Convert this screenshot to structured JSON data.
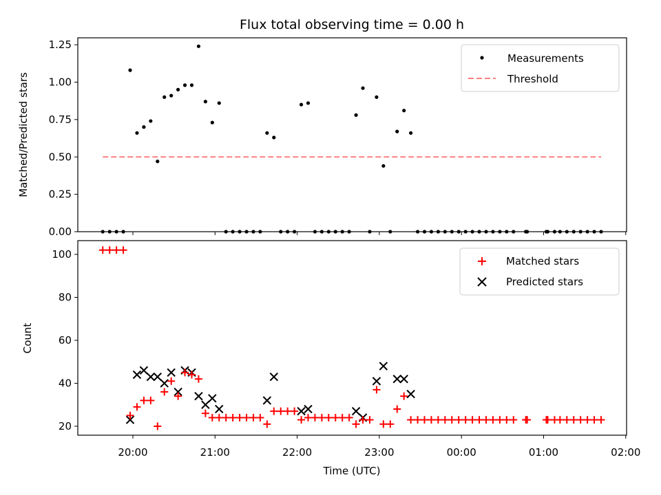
{
  "chart_data": [
    {
      "type": "scatter",
      "title": "Flux total observing time = 0.00 h",
      "xlabel": "",
      "ylabel": "Matched/Predicted stars",
      "ylim": [
        0,
        1.3
      ],
      "y_ticks": [
        "0.00",
        "0.25",
        "0.50",
        "0.75",
        "1.00",
        "1.25"
      ],
      "legend": {
        "placement": "top-right",
        "entries": [
          "Measurements",
          "Threshold"
        ]
      },
      "threshold": {
        "name": "Threshold",
        "y": 0.5,
        "x_start": "19:38",
        "x_end": "01:42",
        "color": "#ff7f7f"
      },
      "series": [
        {
          "name": "Measurements",
          "color": "#000000",
          "points": [
            [
              "19:38",
              0
            ],
            [
              "19:43",
              0
            ],
            [
              "19:48",
              0
            ],
            [
              "19:53",
              0
            ],
            [
              "19:58",
              1.08
            ],
            [
              "20:03",
              0.66
            ],
            [
              "20:08",
              0.7
            ],
            [
              "20:13",
              0.74
            ],
            [
              "20:18",
              0.47
            ],
            [
              "20:23",
              0.9
            ],
            [
              "20:28",
              0.91
            ],
            [
              "20:33",
              0.95
            ],
            [
              "20:38",
              0.98
            ],
            [
              "20:43",
              0.98
            ],
            [
              "20:48",
              1.24
            ],
            [
              "20:53",
              0.87
            ],
            [
              "20:58",
              0.73
            ],
            [
              "21:03",
              0.86
            ],
            [
              "21:08",
              0
            ],
            [
              "21:13",
              0
            ],
            [
              "21:18",
              0
            ],
            [
              "21:23",
              0
            ],
            [
              "21:28",
              0
            ],
            [
              "21:33",
              0
            ],
            [
              "21:38",
              0.66
            ],
            [
              "21:43",
              0.63
            ],
            [
              "21:48",
              0
            ],
            [
              "21:53",
              0
            ],
            [
              "21:58",
              0
            ],
            [
              "22:03",
              0.85
            ],
            [
              "22:08",
              0.86
            ],
            [
              "22:13",
              0
            ],
            [
              "22:18",
              0
            ],
            [
              "22:23",
              0
            ],
            [
              "22:28",
              0
            ],
            [
              "22:33",
              0
            ],
            [
              "22:38",
              0
            ],
            [
              "22:43",
              0.78
            ],
            [
              "22:48",
              0.96
            ],
            [
              "22:53",
              0
            ],
            [
              "22:58",
              0.9
            ],
            [
              "23:03",
              0.44
            ],
            [
              "23:08",
              0
            ],
            [
              "23:13",
              0.67
            ],
            [
              "23:18",
              0.81
            ],
            [
              "23:23",
              0.66
            ],
            [
              "23:28",
              0
            ],
            [
              "23:33",
              0
            ],
            [
              "23:38",
              0
            ],
            [
              "23:43",
              0
            ],
            [
              "23:48",
              0
            ],
            [
              "23:53",
              0
            ],
            [
              "23:58",
              0
            ],
            [
              "00:03",
              0
            ],
            [
              "00:08",
              0
            ],
            [
              "00:13",
              0
            ],
            [
              "00:18",
              0
            ],
            [
              "00:23",
              0
            ],
            [
              "00:28",
              0
            ],
            [
              "00:33",
              0
            ],
            [
              "00:38",
              0
            ],
            [
              "00:47",
              0
            ],
            [
              "00:48",
              0
            ],
            [
              "01:02",
              0
            ],
            [
              "01:03",
              0
            ],
            [
              "01:08",
              0
            ],
            [
              "01:12",
              0
            ],
            [
              "01:17",
              0
            ],
            [
              "01:22",
              0
            ],
            [
              "01:27",
              0
            ],
            [
              "01:32",
              0
            ],
            [
              "01:37",
              0
            ],
            [
              "01:42",
              0
            ]
          ]
        }
      ]
    },
    {
      "type": "scatter",
      "title": "",
      "xlabel": "Time (UTC)",
      "ylabel": "Count",
      "ylim": [
        15.5,
        106
      ],
      "y_ticks": [
        "20",
        "40",
        "60",
        "80",
        "100"
      ],
      "x_ticks": [
        "20:00",
        "21:00",
        "22:00",
        "23:00",
        "00:00",
        "01:00",
        "02:00"
      ],
      "legend": {
        "placement": "top-right",
        "entries": [
          "Matched stars",
          "Predicted stars"
        ]
      },
      "series": [
        {
          "name": "Matched stars",
          "marker": "+",
          "color": "#ff0000",
          "points": [
            [
              "19:38",
              102
            ],
            [
              "19:43",
              102
            ],
            [
              "19:48",
              102
            ],
            [
              "19:53",
              102
            ],
            [
              "19:58",
              25
            ],
            [
              "20:03",
              29
            ],
            [
              "20:08",
              32
            ],
            [
              "20:13",
              32
            ],
            [
              "20:18",
              20
            ],
            [
              "20:23",
              36
            ],
            [
              "20:28",
              41
            ],
            [
              "20:33",
              34
            ],
            [
              "20:38",
              45
            ],
            [
              "20:43",
              44
            ],
            [
              "20:48",
              42
            ],
            [
              "20:53",
              26
            ],
            [
              "20:58",
              24
            ],
            [
              "21:03",
              24
            ],
            [
              "21:08",
              24
            ],
            [
              "21:13",
              24
            ],
            [
              "21:18",
              24
            ],
            [
              "21:23",
              24
            ],
            [
              "21:28",
              24
            ],
            [
              "21:33",
              24
            ],
            [
              "21:38",
              21
            ],
            [
              "21:43",
              27
            ],
            [
              "21:48",
              27
            ],
            [
              "21:53",
              27
            ],
            [
              "21:58",
              27
            ],
            [
              "22:03",
              23
            ],
            [
              "22:08",
              24
            ],
            [
              "22:13",
              24
            ],
            [
              "22:18",
              24
            ],
            [
              "22:23",
              24
            ],
            [
              "22:28",
              24
            ],
            [
              "22:33",
              24
            ],
            [
              "22:38",
              24
            ],
            [
              "22:43",
              21
            ],
            [
              "22:48",
              23
            ],
            [
              "22:53",
              23
            ],
            [
              "22:58",
              37
            ],
            [
              "23:03",
              21
            ],
            [
              "23:08",
              21
            ],
            [
              "23:13",
              28
            ],
            [
              "23:18",
              34
            ],
            [
              "23:23",
              23
            ],
            [
              "23:28",
              23
            ],
            [
              "23:33",
              23
            ],
            [
              "23:38",
              23
            ],
            [
              "23:43",
              23
            ],
            [
              "23:48",
              23
            ],
            [
              "23:53",
              23
            ],
            [
              "23:58",
              23
            ],
            [
              "00:03",
              23
            ],
            [
              "00:08",
              23
            ],
            [
              "00:13",
              23
            ],
            [
              "00:18",
              23
            ],
            [
              "00:23",
              23
            ],
            [
              "00:28",
              23
            ],
            [
              "00:33",
              23
            ],
            [
              "00:38",
              23
            ],
            [
              "00:47",
              23
            ],
            [
              "00:48",
              23
            ],
            [
              "01:02",
              23
            ],
            [
              "01:03",
              23
            ],
            [
              "01:08",
              23
            ],
            [
              "01:12",
              23
            ],
            [
              "01:17",
              23
            ],
            [
              "01:22",
              23
            ],
            [
              "01:27",
              23
            ],
            [
              "01:32",
              23
            ],
            [
              "01:37",
              23
            ],
            [
              "01:42",
              23
            ]
          ]
        },
        {
          "name": "Predicted stars",
          "marker": "x",
          "color": "#000000",
          "points": [
            [
              "19:58",
              23
            ],
            [
              "20:03",
              44
            ],
            [
              "20:08",
              46
            ],
            [
              "20:13",
              43
            ],
            [
              "20:18",
              43
            ],
            [
              "20:23",
              40
            ],
            [
              "20:28",
              45
            ],
            [
              "20:33",
              36
            ],
            [
              "20:38",
              46
            ],
            [
              "20:43",
              45
            ],
            [
              "20:48",
              34
            ],
            [
              "20:53",
              30
            ],
            [
              "20:58",
              33
            ],
            [
              "21:03",
              28
            ],
            [
              "21:38",
              32
            ],
            [
              "21:43",
              43
            ],
            [
              "22:03",
              27
            ],
            [
              "22:08",
              28
            ],
            [
              "22:43",
              27
            ],
            [
              "22:48",
              24
            ],
            [
              "22:58",
              41
            ],
            [
              "23:03",
              48
            ],
            [
              "23:13",
              42
            ],
            [
              "23:18",
              42
            ],
            [
              "23:23",
              35
            ]
          ]
        }
      ]
    }
  ]
}
